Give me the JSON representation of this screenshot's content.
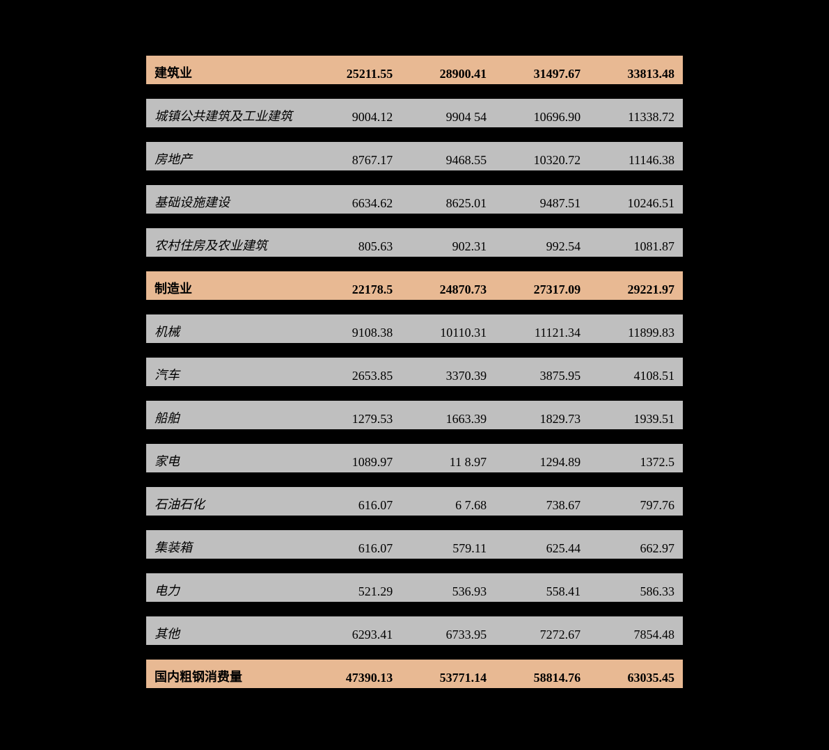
{
  "table": {
    "type": "table",
    "background_color": "#000000",
    "highlight_row_color": "#e8b993",
    "normal_row_color": "#bfbfbf",
    "border_color": "#000000",
    "label_fontsize": 18,
    "value_fontsize": 18,
    "columns_count": 5,
    "rows": [
      {
        "type": "highlight",
        "label": "建筑业",
        "values": [
          "25211.55",
          "28900.41",
          "31497.67",
          "33813.48"
        ]
      },
      {
        "type": "normal",
        "label": "城镇公共建筑及工业建筑",
        "values": [
          "9004.12",
          "9904  54",
          "10696.90",
          "11338.72"
        ]
      },
      {
        "type": "normal",
        "label": "房地产",
        "values": [
          "8767.17",
          "9468.55",
          "10320.72",
          "11146.38"
        ]
      },
      {
        "type": "normal",
        "label": "基础设施建设",
        "values": [
          "6634.62",
          "8625.01",
          "9487.51",
          "10246.51"
        ]
      },
      {
        "type": "normal",
        "label": "农村住房及农业建筑",
        "values": [
          "805.63",
          "902.31",
          "992.54",
          "1081.87"
        ]
      },
      {
        "type": "highlight",
        "label": "制造业",
        "values": [
          "22178.5",
          "24870.73",
          "27317.09",
          "29221.97"
        ]
      },
      {
        "type": "normal",
        "label": "机械",
        "values": [
          "9108.38",
          "10110.31",
          "11121.34",
          "11899.83"
        ]
      },
      {
        "type": "normal",
        "label": "汽车",
        "values": [
          "2653.85",
          "3370.39",
          "3875.95",
          "4108.51"
        ]
      },
      {
        "type": "normal",
        "label": "船舶",
        "values": [
          "1279.53",
          "1663.39",
          "1829.73",
          "1939.51"
        ]
      },
      {
        "type": "normal",
        "label": "家电",
        "values": [
          "1089.97",
          "11  8.97",
          "1294.89",
          "1372.5"
        ]
      },
      {
        "type": "normal",
        "label": "石油石化",
        "values": [
          "616.07",
          "6  7.68",
          "738.67",
          "797.76"
        ]
      },
      {
        "type": "normal",
        "label": "集装箱",
        "values": [
          "616.07",
          "579.11",
          "625.44",
          "662.97"
        ]
      },
      {
        "type": "normal",
        "label": "电力",
        "values": [
          "521.29",
          "536.93",
          "558.41",
          "586.33"
        ]
      },
      {
        "type": "normal",
        "label": "其他",
        "values": [
          "6293.41",
          "6733.95",
          "7272.67",
          "7854.48"
        ]
      },
      {
        "type": "highlight",
        "label": "国内粗钢消费量",
        "values": [
          "47390.13",
          "53771.14",
          "58814.76",
          "63035.45"
        ]
      }
    ]
  }
}
